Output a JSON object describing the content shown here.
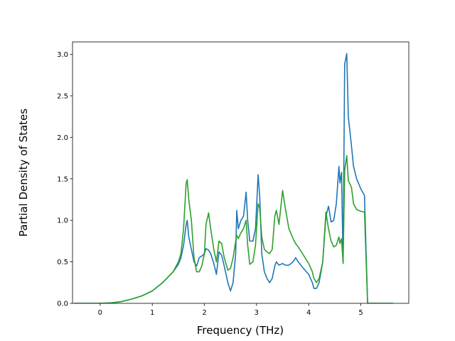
{
  "chart_data": {
    "type": "line",
    "x_label": "Frequency (THz)",
    "y_label": "Partial Density of States",
    "x": [
      -0.5,
      0,
      0.2,
      0.4,
      0.6,
      0.8,
      1.0,
      1.2,
      1.4,
      1.5,
      1.55,
      1.6,
      1.65,
      1.67,
      1.7,
      1.75,
      1.8,
      1.85,
      1.9,
      1.95,
      2.0,
      2.03,
      2.08,
      2.12,
      2.18,
      2.23,
      2.28,
      2.33,
      2.38,
      2.45,
      2.5,
      2.55,
      2.6,
      2.62,
      2.65,
      2.7,
      2.75,
      2.8,
      2.83,
      2.87,
      2.93,
      2.98,
      3.03,
      3.06,
      3.1,
      3.15,
      3.2,
      3.25,
      3.3,
      3.35,
      3.38,
      3.43,
      3.5,
      3.55,
      3.62,
      3.7,
      3.75,
      3.8,
      3.9,
      4.0,
      4.07,
      4.1,
      4.15,
      4.2,
      4.27,
      4.33,
      4.38,
      4.43,
      4.48,
      4.53,
      4.58,
      4.6,
      4.63,
      4.66,
      4.69,
      4.73,
      4.76,
      4.82,
      4.86,
      4.92,
      5.0,
      5.07,
      5.13,
      5.3,
      5.62
    ],
    "series": [
      {
        "color": "#1f77b4",
        "values": [
          0,
          0,
          0.005,
          0.02,
          0.05,
          0.09,
          0.15,
          0.25,
          0.38,
          0.47,
          0.55,
          0.7,
          0.95,
          1.0,
          0.8,
          0.65,
          0.5,
          0.45,
          0.55,
          0.57,
          0.6,
          0.66,
          0.64,
          0.6,
          0.48,
          0.35,
          0.62,
          0.58,
          0.45,
          0.25,
          0.15,
          0.25,
          0.6,
          1.12,
          0.9,
          1.0,
          1.05,
          1.34,
          1.0,
          0.75,
          0.75,
          0.9,
          1.55,
          1.3,
          0.6,
          0.38,
          0.3,
          0.25,
          0.3,
          0.45,
          0.5,
          0.46,
          0.48,
          0.46,
          0.46,
          0.5,
          0.55,
          0.5,
          0.42,
          0.35,
          0.25,
          0.18,
          0.18,
          0.25,
          0.5,
          1.05,
          1.17,
          0.98,
          1.0,
          1.2,
          1.65,
          1.45,
          1.58,
          0.5,
          2.88,
          3.01,
          2.25,
          1.9,
          1.65,
          1.5,
          1.38,
          1.3,
          0,
          0,
          0
        ]
      },
      {
        "color": "#2ca02c",
        "values": [
          0,
          0,
          0.005,
          0.02,
          0.05,
          0.09,
          0.15,
          0.25,
          0.38,
          0.5,
          0.6,
          0.9,
          1.45,
          1.49,
          1.25,
          1.0,
          0.55,
          0.38,
          0.38,
          0.45,
          0.6,
          0.95,
          1.09,
          0.9,
          0.65,
          0.5,
          0.75,
          0.72,
          0.55,
          0.4,
          0.42,
          0.55,
          0.75,
          0.82,
          0.78,
          0.85,
          0.9,
          1.0,
          0.7,
          0.47,
          0.5,
          0.7,
          1.2,
          1.15,
          0.8,
          0.65,
          0.62,
          0.6,
          0.65,
          1.05,
          1.12,
          0.95,
          1.36,
          1.15,
          0.9,
          0.78,
          0.72,
          0.68,
          0.58,
          0.48,
          0.38,
          0.3,
          0.25,
          0.3,
          0.5,
          1.1,
          0.9,
          0.75,
          0.68,
          0.7,
          0.8,
          0.72,
          0.78,
          0.48,
          1.6,
          1.78,
          1.48,
          1.4,
          1.2,
          1.13,
          1.11,
          1.1,
          0,
          0,
          0
        ]
      }
    ],
    "xlim": [
      -0.53,
      5.92
    ],
    "ylim": [
      0,
      3.15
    ],
    "xticks": [
      0,
      1,
      2,
      3,
      4,
      5
    ],
    "yticks": [
      {
        "value": 0,
        "label": "0.0"
      },
      {
        "value": 0.5,
        "label": "0.5"
      },
      {
        "value": 1,
        "label": "1.0"
      },
      {
        "value": 1.5,
        "label": "1.5"
      },
      {
        "value": 2,
        "label": "2.0"
      },
      {
        "value": 2.5,
        "label": "2.5"
      },
      {
        "value": 3,
        "label": "3.0"
      }
    ]
  }
}
